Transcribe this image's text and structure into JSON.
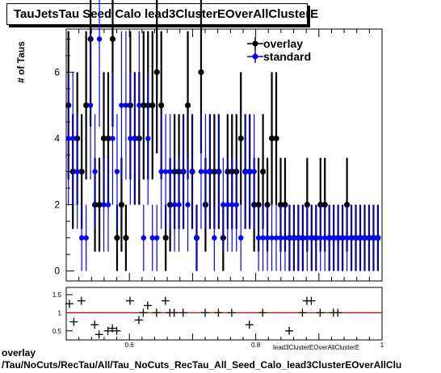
{
  "title": "TauJetsTau Seed Calo lead3ClusterEOverAllClusterE",
  "ylabel": "# of Taus",
  "footer_line1": "overlay",
  "footer_line2": "/Tau/NoCuts/RecTau/All/Tau_NoCuts_RecTau_All_Seed_Calo_lead3ClusterEOverAllClu",
  "xlabel_small": "lead3ClusterEOverAllClusterE",
  "chart_data": [
    {
      "type": "scatter",
      "title": "TauJetsTau Seed Calo lead3ClusterEOverAllClusterE",
      "ylabel": "# of Taus",
      "xlim": [
        0.5,
        1.0
      ],
      "ylim": [
        -0.3,
        7.3
      ],
      "y_ticks": [
        0,
        2,
        4,
        6
      ],
      "legend": {
        "placement": "top-right",
        "entries": [
          "overlay",
          "standard"
        ]
      },
      "series": [
        {
          "name": "overlay",
          "color": "#000000",
          "x": [
            0.5035,
            0.5105,
            0.5175,
            0.5245,
            0.5315,
            0.5385,
            0.5455,
            0.5525,
            0.5595,
            0.5665,
            0.5735,
            0.5805,
            0.5875,
            0.5945,
            0.6015,
            0.6085,
            0.6155,
            0.6225,
            0.6295,
            0.6365,
            0.6435,
            0.6505,
            0.6575,
            0.6645,
            0.6715,
            0.6785,
            0.6855,
            0.6925,
            0.6995,
            0.7065,
            0.7135,
            0.7205,
            0.7275,
            0.7345,
            0.7415,
            0.7485,
            0.7555,
            0.7625,
            0.7695,
            0.7765,
            0.7835,
            0.7905,
            0.7975,
            0.8045,
            0.8115,
            0.8185,
            0.8255,
            0.8325,
            0.8395,
            0.8465,
            0.8535,
            0.8605,
            0.8675,
            0.8745,
            0.8815,
            0.8885,
            0.8955,
            0.9025,
            0.9095,
            0.9165,
            0.9235,
            0.9305,
            0.9375,
            0.9445,
            0.9515,
            0.9585,
            0.9655,
            0.9725,
            0.9795,
            0.9865,
            0.9935
          ],
          "y": [
            5,
            3,
            4,
            3,
            5,
            7,
            2,
            2,
            4,
            4,
            7,
            1,
            2,
            1,
            5,
            4,
            4,
            5,
            5,
            5,
            6,
            5,
            1,
            2,
            3,
            3,
            3,
            5,
            3,
            1,
            6,
            2,
            3,
            3,
            3,
            1,
            3,
            3,
            3,
            4,
            3,
            3,
            2,
            2,
            3,
            2,
            4,
            4,
            2,
            2,
            1,
            1,
            1,
            1,
            2,
            1,
            1,
            2,
            2,
            1,
            1,
            1,
            1,
            2,
            1,
            1,
            1,
            1,
            1,
            1,
            1
          ],
          "y_err": []
        },
        {
          "name": "standard",
          "color": "#0000ff",
          "x": [
            0.5035,
            0.5105,
            0.5175,
            0.5245,
            0.5315,
            0.5385,
            0.5455,
            0.5525,
            0.5595,
            0.5665,
            0.5735,
            0.5805,
            0.5875,
            0.5945,
            0.6015,
            0.6085,
            0.6155,
            0.6225,
            0.6295,
            0.6365,
            0.6435,
            0.6505,
            0.6575,
            0.6645,
            0.6715,
            0.6785,
            0.6855,
            0.6925,
            0.6995,
            0.7065,
            0.7135,
            0.7205,
            0.7275,
            0.7345,
            0.7415,
            0.7485,
            0.7555,
            0.7625,
            0.7695,
            0.7765,
            0.7835,
            0.7905,
            0.7975,
            0.8045,
            0.8115,
            0.8185,
            0.8255,
            0.8325,
            0.8395,
            0.8465,
            0.8535,
            0.8605,
            0.8675,
            0.8745,
            0.8815,
            0.8885,
            0.8955,
            0.9025,
            0.9095,
            0.9165,
            0.9235,
            0.9305,
            0.9375,
            0.9445,
            0.9515,
            0.9585,
            0.9655,
            0.9725,
            0.9795,
            0.9865,
            0.9935
          ],
          "y": [
            4,
            4,
            3,
            1,
            1,
            5,
            3,
            7,
            2,
            2,
            4,
            3,
            5,
            5,
            4,
            4,
            5,
            1,
            4,
            1,
            1,
            3,
            3,
            3,
            2,
            2,
            3,
            2,
            3,
            1,
            3,
            3,
            3,
            1,
            3,
            2,
            2,
            2,
            2,
            1,
            3,
            3,
            3,
            1,
            1,
            1,
            1,
            1,
            1,
            1,
            1,
            1,
            1,
            1,
            1,
            1,
            1,
            1,
            1,
            1,
            1,
            1,
            1,
            1,
            1,
            1,
            1,
            1,
            1,
            1,
            1
          ]
        }
      ]
    },
    {
      "type": "scatter",
      "title": "",
      "xlim": [
        0.5,
        1.0
      ],
      "ylim": [
        0.25,
        1.7
      ],
      "x_ticks": [
        0.6,
        0.8,
        1
      ],
      "y_ticks": [
        0.5,
        1,
        1.5
      ],
      "reference_line": {
        "y": 1.0,
        "color": "#cc0000"
      },
      "series": [
        {
          "name": "",
          "color": "#000000",
          "x": [
            0.505,
            0.512,
            0.524,
            0.545,
            0.552,
            0.566,
            0.573,
            0.58,
            0.601,
            0.615,
            0.622,
            0.629,
            0.643,
            0.657,
            0.664,
            0.671,
            0.685,
            0.72,
            0.741,
            0.762,
            0.79,
            0.811,
            0.853,
            0.874,
            0.881,
            0.888,
            0.902,
            0.923,
            0.93
          ],
          "y": [
            1.25,
            0.75,
            1.33,
            0.67,
            0.4,
            0.5,
            0.57,
            0.5,
            1.33,
            0.8,
            1.0,
            1.2,
            1.0,
            1.33,
            1.0,
            1.0,
            1.0,
            1.0,
            1.0,
            1.0,
            0.67,
            1.0,
            0.5,
            1.0,
            1.33,
            1.33,
            1.0,
            1.0,
            1.0
          ]
        }
      ]
    }
  ]
}
